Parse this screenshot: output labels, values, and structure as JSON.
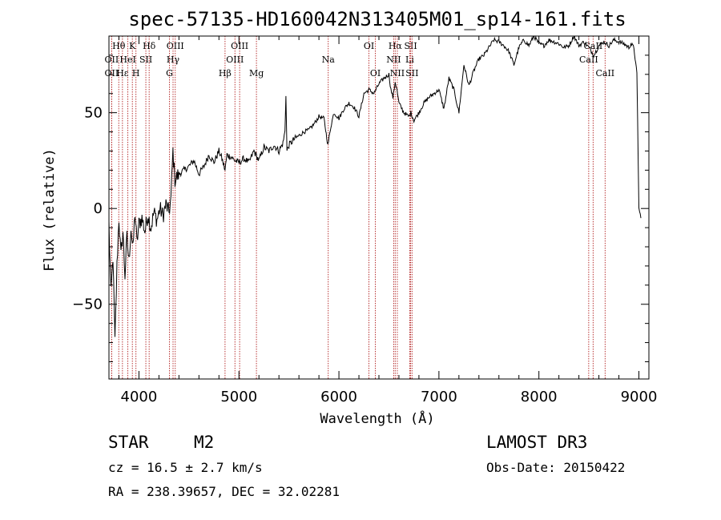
{
  "chart_data": {
    "type": "line",
    "title": "spec-57135-HD160042N313405M01_sp14-161.fits",
    "xlabel": "Wavelength (Å)",
    "ylabel": "Flux (relative)",
    "xlim": [
      3700,
      9100
    ],
    "ylim": [
      -89,
      90
    ],
    "xticks": [
      4000,
      5000,
      6000,
      7000,
      8000,
      9000
    ],
    "yticks": [
      -50,
      0,
      50
    ],
    "grid": false,
    "series": [
      {
        "x": [
          3700,
          3720,
          3740,
          3760,
          3780,
          3800,
          3820,
          3840,
          3860,
          3880,
          3900,
          3920,
          3940,
          3960,
          3980,
          4000,
          4030,
          4060,
          4090,
          4120,
          4150,
          4180,
          4210,
          4240,
          4270,
          4300,
          4320,
          4340,
          4360,
          4400,
          4450,
          4500,
          4550,
          4600,
          4650,
          4700,
          4750,
          4800,
          4830,
          4861,
          4880,
          4920,
          4960,
          5000,
          5050,
          5100,
          5150,
          5200,
          5250,
          5300,
          5350,
          5400,
          5440,
          5460,
          5470,
          5480,
          5500,
          5550,
          5600,
          5650,
          5700,
          5750,
          5800,
          5850,
          5890,
          5920,
          5950,
          6000,
          6050,
          6100,
          6150,
          6200,
          6250,
          6300,
          6350,
          6400,
          6450,
          6500,
          6520,
          6540,
          6563,
          6580,
          6600,
          6650,
          6700,
          6720,
          6750,
          6800,
          6850,
          6900,
          6950,
          7000,
          7050,
          7100,
          7150,
          7200,
          7250,
          7300,
          7350,
          7400,
          7450,
          7500,
          7550,
          7600,
          7650,
          7700,
          7750,
          7800,
          7850,
          7900,
          7950,
          8000,
          8050,
          8100,
          8150,
          8200,
          8250,
          8300,
          8350,
          8400,
          8450,
          8500,
          8550,
          8600,
          8650,
          8700,
          8750,
          8800,
          8850,
          8900,
          8920,
          8950,
          8980,
          9000,
          9020
        ],
        "y": [
          -8,
          -45,
          -25,
          -70,
          -30,
          -5,
          -25,
          -12,
          -35,
          -15,
          -28,
          -10,
          -22,
          -2,
          -18,
          -8,
          -5,
          -12,
          -3,
          -10,
          -2,
          -6,
          0,
          -4,
          2,
          -2,
          5,
          30,
          15,
          18,
          20,
          22,
          25,
          18,
          22,
          28,
          24,
          30,
          26,
          20,
          28,
          27,
          25,
          24,
          26,
          24,
          30,
          25,
          32,
          30,
          33,
          30,
          34,
          40,
          60,
          30,
          33,
          36,
          38,
          40,
          41,
          44,
          48,
          47,
          33,
          43,
          50,
          47,
          52,
          55,
          53,
          48,
          60,
          62,
          60,
          65,
          68,
          70,
          62,
          58,
          66,
          62,
          55,
          50,
          48,
          50,
          46,
          50,
          55,
          58,
          60,
          62,
          52,
          68,
          62,
          50,
          75,
          64,
          72,
          78,
          80,
          84,
          88,
          87,
          85,
          82,
          75,
          84,
          88,
          85,
          90,
          86,
          85,
          88,
          87,
          86,
          84,
          85,
          90,
          85,
          87,
          84,
          80,
          85,
          87,
          85,
          88,
          87,
          86,
          84,
          86,
          84,
          70,
          0,
          -5
        ]
      }
    ],
    "line_markers": [
      {
        "label": "Hθ",
        "x": 3798,
        "row": 0
      },
      {
        "label": "OII",
        "x": 3727,
        "row": 1
      },
      {
        "label": "OII",
        "x": 3727,
        "row": 2
      },
      {
        "label": "K",
        "x": 3934,
        "row": 0
      },
      {
        "label": "HeI",
        "x": 3889,
        "row": 1
      },
      {
        "label": "Hε",
        "x": 3835,
        "row": 2
      },
      {
        "label": "Hδ",
        "x": 4102,
        "row": 0
      },
      {
        "label": "SII",
        "x": 4069,
        "row": 1
      },
      {
        "label": "H",
        "x": 3970,
        "row": 2
      },
      {
        "label": "OIII",
        "x": 4363,
        "row": 0
      },
      {
        "label": "Hγ",
        "x": 4341,
        "row": 1
      },
      {
        "label": "G",
        "x": 4305,
        "row": 2
      },
      {
        "label": "OIII",
        "x": 5007,
        "row": 0
      },
      {
        "label": "OIII",
        "x": 4960,
        "row": 1
      },
      {
        "label": "Hβ",
        "x": 4861,
        "row": 2
      },
      {
        "label": "Mg",
        "x": 5175,
        "row": 2
      },
      {
        "label": "Na",
        "x": 5893,
        "row": 1
      },
      {
        "label": "OI",
        "x": 6300,
        "row": 0
      },
      {
        "label": "OI",
        "x": 6364,
        "row": 2
      },
      {
        "label": "Hα",
        "x": 6563,
        "row": 0
      },
      {
        "label": "SII",
        "x": 6717,
        "row": 0
      },
      {
        "label": "NII",
        "x": 6548,
        "row": 1
      },
      {
        "label": "Li",
        "x": 6708,
        "row": 1
      },
      {
        "label": "NII",
        "x": 6584,
        "row": 2
      },
      {
        "label": "SII",
        "x": 6731,
        "row": 2
      },
      {
        "label": "CaII",
        "x": 8542,
        "row": 0
      },
      {
        "label": "CaII",
        "x": 8498,
        "row": 1
      },
      {
        "label": "CaII",
        "x": 8662,
        "row": 2
      }
    ]
  },
  "info": {
    "class": "STAR",
    "subclass": "M2",
    "survey": "LAMOST DR3",
    "cz": "cz = 16.5 ± 2.7 km/s",
    "obs_date": "Obs-Date: 20150422",
    "coords": "RA = 238.39657, DEC =  32.02281"
  }
}
